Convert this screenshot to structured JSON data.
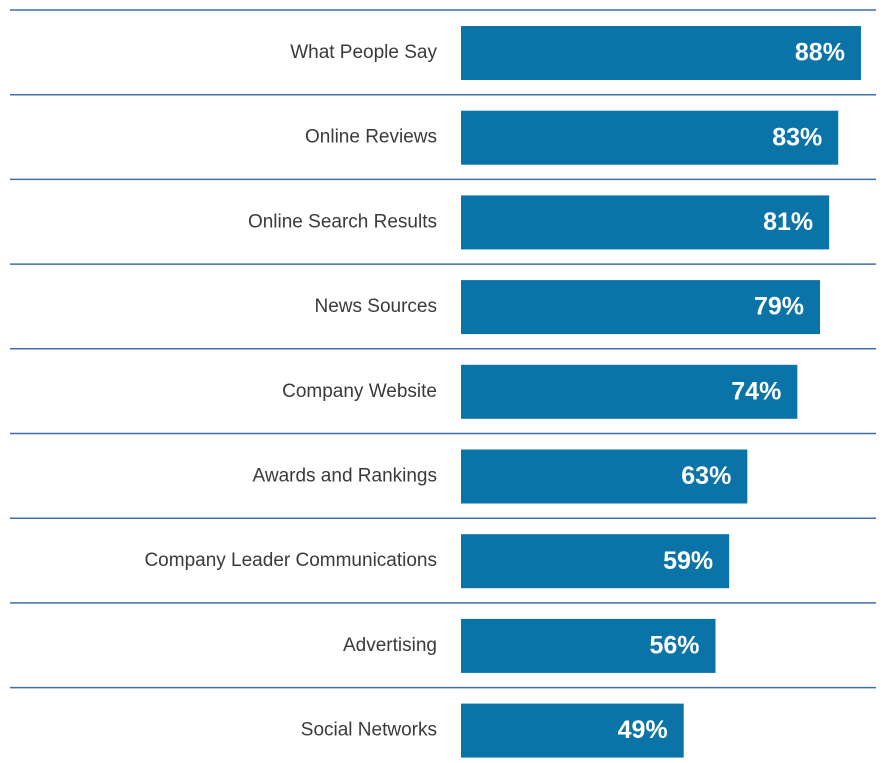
{
  "chart_data": {
    "type": "bar",
    "orientation": "horizontal",
    "categories": [
      "What People Say",
      "Online Reviews",
      "Online Search Results",
      "News Sources",
      "Company Website",
      "Awards and Rankings",
      "Company Leader Communications",
      "Advertising",
      "Social Networks"
    ],
    "values": [
      88,
      83,
      81,
      79,
      74,
      63,
      59,
      56,
      49
    ],
    "value_labels": [
      "88%",
      "83%",
      "81%",
      "79%",
      "74%",
      "63%",
      "59%",
      "56%",
      "49%"
    ],
    "color": "#0a73a8"
  }
}
